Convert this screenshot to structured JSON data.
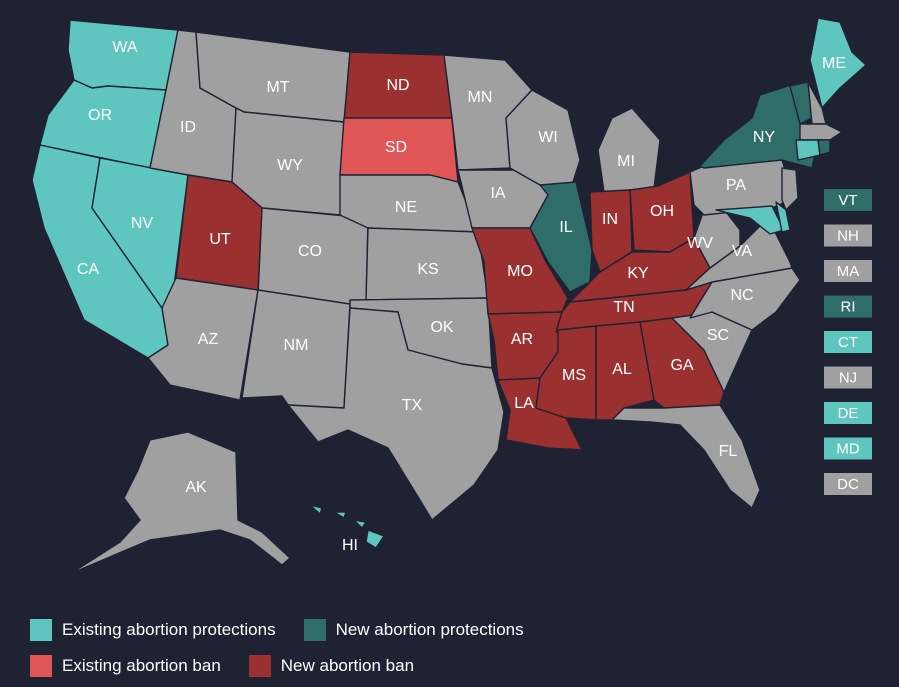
{
  "colors": {
    "existing_protection": "#5fc6bf",
    "new_protection": "#2f6e68",
    "existing_ban": "#e05555",
    "new_ban": "#9b3030",
    "none": "#a0a0a0",
    "background": "#1e2233"
  },
  "legend": [
    {
      "category": "existing_protection",
      "label": "Existing abortion protections"
    },
    {
      "category": "new_protection",
      "label": "New abortion protections"
    },
    {
      "category": "existing_ban",
      "label": "Existing abortion ban"
    },
    {
      "category": "new_ban",
      "label": "New abortion ban"
    }
  ],
  "states": [
    {
      "code": "WA",
      "cat": "existing_protection"
    },
    {
      "code": "OR",
      "cat": "existing_protection"
    },
    {
      "code": "CA",
      "cat": "existing_protection"
    },
    {
      "code": "NV",
      "cat": "existing_protection"
    },
    {
      "code": "ID",
      "cat": "none"
    },
    {
      "code": "MT",
      "cat": "none"
    },
    {
      "code": "WY",
      "cat": "none"
    },
    {
      "code": "UT",
      "cat": "new_ban"
    },
    {
      "code": "CO",
      "cat": "none"
    },
    {
      "code": "AZ",
      "cat": "none"
    },
    {
      "code": "NM",
      "cat": "none"
    },
    {
      "code": "ND",
      "cat": "new_ban"
    },
    {
      "code": "SD",
      "cat": "existing_ban"
    },
    {
      "code": "NE",
      "cat": "none"
    },
    {
      "code": "KS",
      "cat": "none"
    },
    {
      "code": "OK",
      "cat": "none"
    },
    {
      "code": "TX",
      "cat": "none"
    },
    {
      "code": "MN",
      "cat": "none"
    },
    {
      "code": "IA",
      "cat": "none"
    },
    {
      "code": "MO",
      "cat": "new_ban"
    },
    {
      "code": "AR",
      "cat": "new_ban"
    },
    {
      "code": "LA",
      "cat": "new_ban"
    },
    {
      "code": "WI",
      "cat": "none"
    },
    {
      "code": "IL",
      "cat": "new_protection"
    },
    {
      "code": "MI",
      "cat": "none"
    },
    {
      "code": "IN",
      "cat": "new_ban"
    },
    {
      "code": "OH",
      "cat": "new_ban"
    },
    {
      "code": "KY",
      "cat": "new_ban"
    },
    {
      "code": "TN",
      "cat": "new_ban"
    },
    {
      "code": "MS",
      "cat": "new_ban"
    },
    {
      "code": "AL",
      "cat": "new_ban"
    },
    {
      "code": "GA",
      "cat": "new_ban"
    },
    {
      "code": "FL",
      "cat": "none"
    },
    {
      "code": "SC",
      "cat": "none"
    },
    {
      "code": "NC",
      "cat": "none"
    },
    {
      "code": "VA",
      "cat": "none"
    },
    {
      "code": "WV",
      "cat": "none"
    },
    {
      "code": "PA",
      "cat": "none"
    },
    {
      "code": "NY",
      "cat": "new_protection"
    },
    {
      "code": "ME",
      "cat": "existing_protection"
    },
    {
      "code": "AK",
      "cat": "none"
    },
    {
      "code": "HI",
      "cat": "existing_protection"
    }
  ],
  "small_states": [
    {
      "code": "VT",
      "cat": "new_protection"
    },
    {
      "code": "NH",
      "cat": "none"
    },
    {
      "code": "MA",
      "cat": "none"
    },
    {
      "code": "RI",
      "cat": "new_protection"
    },
    {
      "code": "CT",
      "cat": "existing_protection"
    },
    {
      "code": "NJ",
      "cat": "none"
    },
    {
      "code": "DE",
      "cat": "existing_protection"
    },
    {
      "code": "MD",
      "cat": "existing_protection"
    },
    {
      "code": "DC",
      "cat": "none"
    }
  ]
}
